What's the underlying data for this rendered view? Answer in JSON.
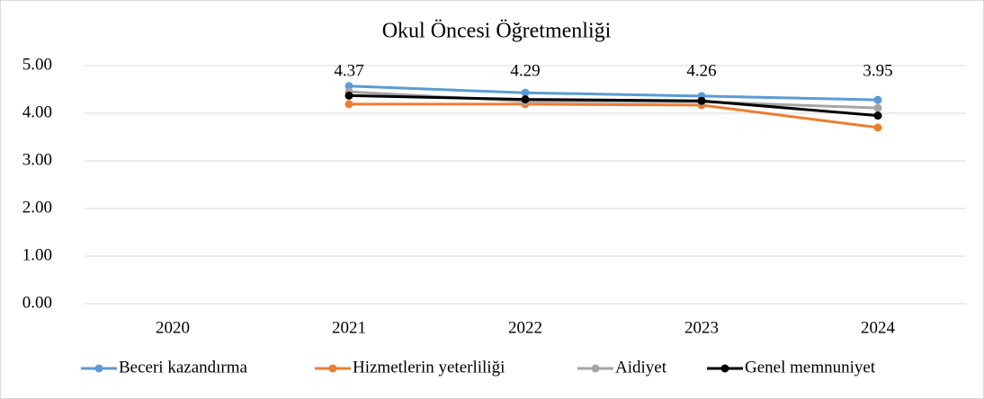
{
  "chart_data": {
    "type": "line",
    "title": "Okul Öncesi Öğretmenliği",
    "categories": [
      "2020",
      "2021",
      "2022",
      "2023",
      "2024"
    ],
    "series": [
      {
        "name": "Beceri kazandırma",
        "color": "#5b9bd5",
        "values": [
          null,
          4.57,
          4.43,
          4.36,
          4.28
        ]
      },
      {
        "name": "Hizmetlerin yeterliliği",
        "color": "#ed7d31",
        "values": [
          null,
          4.19,
          4.19,
          4.17,
          3.7
        ]
      },
      {
        "name": "Aidiyet",
        "color": "#a5a5a5",
        "values": [
          null,
          4.45,
          4.25,
          4.24,
          4.11
        ]
      },
      {
        "name": "Genel memnuniyet",
        "color": "#000000",
        "values": [
          null,
          4.37,
          4.29,
          4.26,
          3.95
        ],
        "data_labels": true
      }
    ],
    "ylim": [
      0,
      5
    ],
    "yticks": [
      {
        "value": 0,
        "label": "0.00"
      },
      {
        "value": 1,
        "label": "1.00"
      },
      {
        "value": 2,
        "label": "2.00"
      },
      {
        "value": 3,
        "label": "3.00"
      },
      {
        "value": 4,
        "label": "4.00"
      },
      {
        "value": 5,
        "label": "5.00"
      }
    ],
    "grid": true,
    "legend": "bottom"
  }
}
